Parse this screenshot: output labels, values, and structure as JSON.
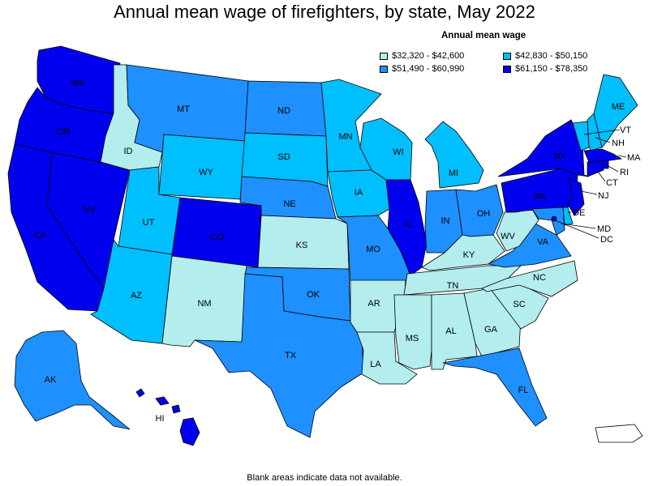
{
  "title": "Annual mean wage of firefighters, by state, May 2022",
  "legend": {
    "title": "Annual mean wage",
    "items": [
      {
        "label": "$32,320 - $42,600",
        "color": "#b3eded"
      },
      {
        "label": "$42,830 - $50,150",
        "color": "#00bfff"
      },
      {
        "label": "$51,490 - $60,990",
        "color": "#1e90ff"
      },
      {
        "label": "$61,150 - $78,350",
        "color": "#0000ee"
      }
    ]
  },
  "footnote": "Blank areas indicate data not available.",
  "states": {
    "WA": {
      "label": "WA",
      "tier": 3
    },
    "OR": {
      "label": "OR",
      "tier": 3
    },
    "CA": {
      "label": "CA",
      "tier": 3
    },
    "NV": {
      "label": "NV",
      "tier": 3
    },
    "ID": {
      "label": "ID",
      "tier": 0
    },
    "MT": {
      "label": "MT",
      "tier": 2
    },
    "WY": {
      "label": "WY",
      "tier": 1
    },
    "UT": {
      "label": "UT",
      "tier": 1
    },
    "AZ": {
      "label": "AZ",
      "tier": 1
    },
    "CO": {
      "label": "CO",
      "tier": 3
    },
    "NM": {
      "label": "NM",
      "tier": 0
    },
    "ND": {
      "label": "ND",
      "tier": 2
    },
    "SD": {
      "label": "SD",
      "tier": 1
    },
    "NE": {
      "label": "NE",
      "tier": 2
    },
    "KS": {
      "label": "KS",
      "tier": 0
    },
    "OK": {
      "label": "OK",
      "tier": 2
    },
    "TX": {
      "label": "TX",
      "tier": 2
    },
    "MN": {
      "label": "MN",
      "tier": 1
    },
    "IA": {
      "label": "IA",
      "tier": 1
    },
    "MO": {
      "label": "MO",
      "tier": 2
    },
    "AR": {
      "label": "AR",
      "tier": 0
    },
    "LA": {
      "label": "LA",
      "tier": 0
    },
    "WI": {
      "label": "WI",
      "tier": 1
    },
    "IL": {
      "label": "IL",
      "tier": 3
    },
    "MI": {
      "label": "MI",
      "tier": 1
    },
    "IN": {
      "label": "IN",
      "tier": 2
    },
    "OH": {
      "label": "OH",
      "tier": 2
    },
    "KY": {
      "label": "KY",
      "tier": 0
    },
    "TN": {
      "label": "TN",
      "tier": 0
    },
    "MS": {
      "label": "MS",
      "tier": 0
    },
    "AL": {
      "label": "AL",
      "tier": 0
    },
    "GA": {
      "label": "GA",
      "tier": 0
    },
    "FL": {
      "label": "FL",
      "tier": 2
    },
    "SC": {
      "label": "SC",
      "tier": 0
    },
    "NC": {
      "label": "NC",
      "tier": 0
    },
    "VA": {
      "label": "VA",
      "tier": 2
    },
    "WV": {
      "label": "WV",
      "tier": 0
    },
    "PA": {
      "label": "PA",
      "tier": 3
    },
    "NY": {
      "label": "NY",
      "tier": 3
    },
    "VT": {
      "label": "VT",
      "tier": 1
    },
    "NH": {
      "label": "NH",
      "tier": 1
    },
    "ME": {
      "label": "ME",
      "tier": 1
    },
    "MA": {
      "label": "MA",
      "tier": 3
    },
    "RI": {
      "label": "RI",
      "tier": 3
    },
    "CT": {
      "label": "CT",
      "tier": 3
    },
    "NJ": {
      "label": "NJ",
      "tier": 3
    },
    "DE": {
      "label": "DE",
      "tier": 1
    },
    "MD": {
      "label": "MD",
      "tier": 2
    },
    "DC": {
      "label": "DC",
      "tier": 3
    },
    "AK": {
      "label": "AK",
      "tier": 2
    },
    "HI": {
      "label": "HI",
      "tier": 3
    },
    "PR": {
      "label": "",
      "tier": null
    }
  }
}
